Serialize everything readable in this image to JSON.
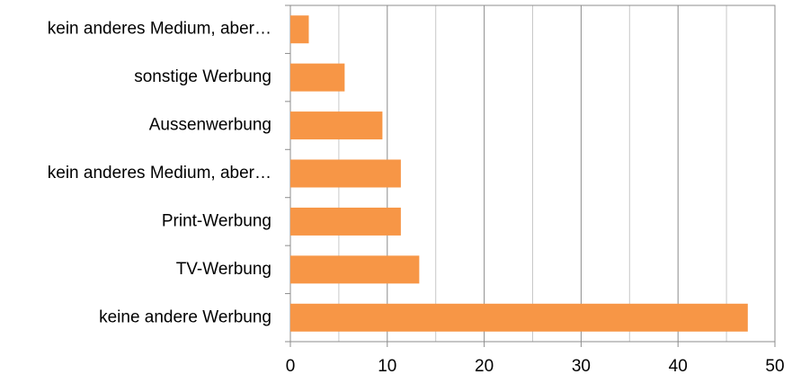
{
  "chart_data": {
    "type": "barh",
    "categories": [
      "kein anderes Medium, aber…",
      "sonstige Werbung",
      "Aussenwerbung",
      "kein anderes Medium, aber…",
      "Print-Werbung",
      "TV-Werbung",
      "keine andere Werbung"
    ],
    "values": [
      1.9,
      5.6,
      9.5,
      11.4,
      11.4,
      13.3,
      47.2
    ],
    "color": "#f79646",
    "xlim": [
      0,
      50
    ],
    "xticks": [
      0,
      10,
      20,
      30,
      40,
      50
    ],
    "minor_gridlines": [
      5,
      15,
      25,
      35,
      45
    ],
    "grid": true
  }
}
